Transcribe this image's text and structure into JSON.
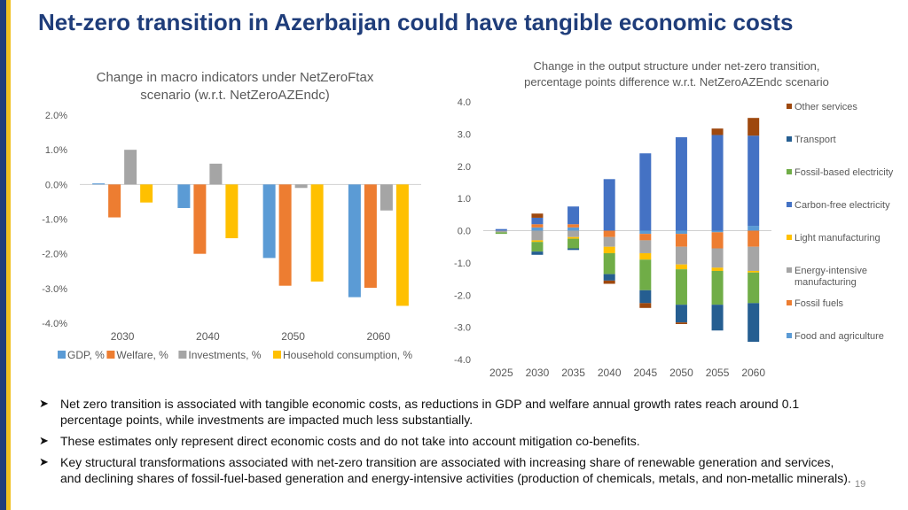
{
  "title": "Net-zero transition in Azerbaijan could have tangible economic costs",
  "colors": {
    "title": "#1f3d7a",
    "stripe_dark": "#1f3d7a",
    "stripe_gold": "#f0c020",
    "gdp": "#5b9bd5",
    "welfare": "#ed7d31",
    "investments": "#a5a5a5",
    "household": "#ffc000"
  },
  "chart_data": [
    {
      "type": "bar",
      "title_lines": [
        "Change in macro indicators under NetZeroFtax",
        "scenario (w.r.t. NetZeroAZEndc)"
      ],
      "categories": [
        "2030",
        "2040",
        "2050",
        "2060"
      ],
      "ylim": [
        -4.0,
        2.0
      ],
      "yticks": [
        "2.0%",
        "1.0%",
        "0.0%",
        "-1.0%",
        "-2.0%",
        "-3.0%",
        "-4.0%"
      ],
      "ytick_values": [
        2,
        1,
        0,
        -1,
        -2,
        -3,
        -4
      ],
      "series": [
        {
          "name": "GDP, %",
          "color": "#5b9bd5",
          "values": [
            0.03,
            -0.68,
            -2.12,
            -3.25
          ]
        },
        {
          "name": "Welfare, %",
          "color": "#ed7d31",
          "values": [
            -0.95,
            -2.0,
            -2.92,
            -2.98
          ]
        },
        {
          "name": "Investments, %",
          "color": "#a5a5a5",
          "values": [
            1.0,
            0.6,
            -0.1,
            -0.75
          ]
        },
        {
          "name": "Household consumption, %",
          "color": "#ffc000",
          "values": [
            -0.52,
            -1.55,
            -2.8,
            -3.5
          ]
        }
      ],
      "legend": [
        "GDP, %",
        "Welfare, %",
        "Investments, %",
        "Household consumption, %"
      ]
    },
    {
      "type": "bar",
      "stacked": true,
      "title_lines": [
        "Change in the output structure under net-zero transition,",
        "percentage points difference w.r.t. NetZeroAZEndc scenario"
      ],
      "categories": [
        "2025",
        "2030",
        "2035",
        "2040",
        "2045",
        "2050",
        "2055",
        "2060"
      ],
      "ylim": [
        -4.0,
        4.0
      ],
      "yticks": [
        "4.0",
        "3.0",
        "2.0",
        "1.0",
        "0.0",
        "-1.0",
        "-2.0",
        "-3.0",
        "-4.0"
      ],
      "ytick_values": [
        4,
        3,
        2,
        1,
        0,
        -1,
        -2,
        -3,
        -4
      ],
      "series": [
        {
          "name": "Food and agriculture",
          "color": "#5b9bd5",
          "values": [
            0.0,
            0.1,
            0.1,
            0.0,
            -0.1,
            -0.1,
            -0.05,
            0.15
          ]
        },
        {
          "name": "Fossil fuels",
          "color": "#ed7d31",
          "values": [
            0.0,
            0.1,
            0.1,
            -0.2,
            -0.2,
            -0.4,
            -0.5,
            -0.5
          ]
        },
        {
          "name": "Energy-intensive manufacturing",
          "color": "#a5a5a5",
          "values": [
            -0.05,
            -0.3,
            -0.2,
            -0.3,
            -0.4,
            -0.55,
            -0.6,
            -0.75
          ]
        },
        {
          "name": "Light manufacturing",
          "color": "#ffc000",
          "values": [
            0.0,
            -0.05,
            -0.05,
            -0.2,
            -0.2,
            -0.15,
            -0.1,
            -0.05
          ]
        },
        {
          "name": "Carbon-free electricity",
          "color": "#4472c4",
          "values": [
            0.05,
            0.2,
            0.55,
            1.6,
            2.4,
            2.9,
            2.97,
            2.8
          ]
        },
        {
          "name": "Fossil-based electricity",
          "color": "#70ad47",
          "values": [
            -0.05,
            -0.3,
            -0.3,
            -0.65,
            -0.95,
            -1.1,
            -1.05,
            -0.95
          ]
        },
        {
          "name": "Transport",
          "color": "#255e91",
          "values": [
            0.0,
            -0.1,
            -0.05,
            -0.2,
            -0.4,
            -0.55,
            -0.8,
            -1.2
          ]
        },
        {
          "name": "Other services",
          "color": "#9e480e",
          "values": [
            0.0,
            0.13,
            0.0,
            -0.1,
            -0.15,
            -0.05,
            0.2,
            0.55
          ]
        }
      ],
      "legend_order": [
        "Other services",
        "Transport",
        "Fossil-based electricity",
        "Carbon-free electricity",
        "Light manufacturing",
        "Energy-intensive manufacturing",
        "Fossil fuels",
        "Food and agriculture"
      ]
    }
  ],
  "bullets": [
    "Net zero transition is associated with tangible economic costs, as reductions in GDP and welfare annual growth rates reach around 0.1 percentage points, while investments are impacted much less substantially.",
    "These estimates only represent direct economic costs and do not take into account mitigation co-benefits.",
    "Key structural transformations associated with net-zero transition are associated with increasing share of renewable generation and services, and declining shares of fossil-fuel-based generation and energy-intensive activities (production of chemicals, metals, and non-metallic minerals)."
  ],
  "bullet_icon": "arrow-bullet-icon",
  "page_number": "19"
}
